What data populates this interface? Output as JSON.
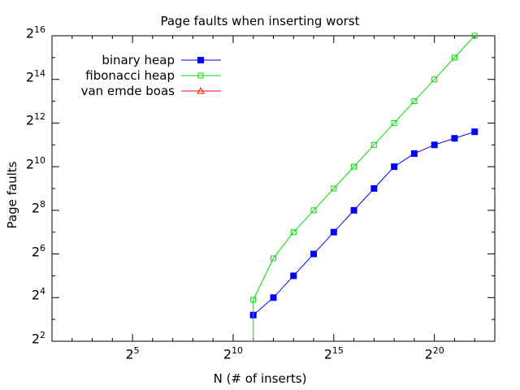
{
  "chart_data": {
    "type": "line",
    "title": "Page faults when inserting worst",
    "xlabel": "N (# of inserts)",
    "ylabel": "Page faults",
    "x_scale": "log2",
    "y_scale": "log2",
    "xlim_exponent": [
      1,
      23
    ],
    "ylim_exponent": [
      2,
      16
    ],
    "x_ticks": [
      {
        "base": "2",
        "exp": "5"
      },
      {
        "base": "2",
        "exp": "10"
      },
      {
        "base": "2",
        "exp": "15"
      },
      {
        "base": "2",
        "exp": "20"
      }
    ],
    "y_ticks": [
      {
        "base": "2",
        "exp": "2"
      },
      {
        "base": "2",
        "exp": "4"
      },
      {
        "base": "2",
        "exp": "6"
      },
      {
        "base": "2",
        "exp": "8"
      },
      {
        "base": "2",
        "exp": "10"
      },
      {
        "base": "2",
        "exp": "12"
      },
      {
        "base": "2",
        "exp": "14"
      },
      {
        "base": "2",
        "exp": "16"
      }
    ],
    "legend_position": "top-left",
    "series": [
      {
        "name": "binary heap",
        "color": "#0000ff",
        "marker": "filled-square",
        "x_exponent": [
          11,
          12,
          13,
          14,
          15,
          16,
          17,
          18,
          19,
          20,
          21,
          22
        ],
        "y_exponent": [
          3.2,
          4.0,
          5.0,
          6.0,
          7.0,
          8.0,
          9.0,
          10.0,
          10.6,
          11.0,
          11.3,
          11.6
        ]
      },
      {
        "name": "fibonacci heap",
        "color": "#00dd00",
        "marker": "open-square",
        "x_exponent": [
          11,
          12,
          13,
          14,
          15,
          16,
          17,
          18,
          19,
          20,
          21,
          22
        ],
        "y_exponent": [
          3.9,
          5.8,
          7.0,
          8.0,
          9.0,
          10.0,
          11.0,
          12.0,
          13.0,
          14.0,
          15.0,
          16.0
        ]
      },
      {
        "name": "van emde boas",
        "color": "#ff0000",
        "marker": "open-triangle",
        "x_exponent": [],
        "y_exponent": []
      }
    ]
  }
}
